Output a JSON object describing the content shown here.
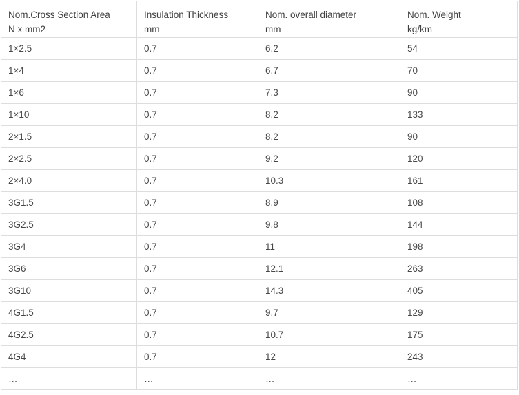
{
  "table": {
    "columns": [
      {
        "title": "Nom.Cross Section Area",
        "unit": "N x mm2"
      },
      {
        "title": "Insulation Thickness",
        "unit": "mm"
      },
      {
        "title": "Nom. overall diameter",
        "unit": "mm"
      },
      {
        "title": "Nom. Weight",
        "unit": "kg/km"
      }
    ],
    "rows": [
      [
        "1×2.5",
        "0.7",
        "6.2",
        "54"
      ],
      [
        "1×4",
        "0.7",
        "6.7",
        "70"
      ],
      [
        "1×6",
        "0.7",
        "7.3",
        "90"
      ],
      [
        "1×10",
        "0.7",
        "8.2",
        "133"
      ],
      [
        "2×1.5",
        "0.7",
        "8.2",
        "90"
      ],
      [
        "2×2.5",
        "0.7",
        "9.2",
        "120"
      ],
      [
        "2×4.0",
        "0.7",
        "10.3",
        "161"
      ],
      [
        "3G1.5",
        "0.7",
        "8.9",
        "108"
      ],
      [
        "3G2.5",
        "0.7",
        "9.8",
        "144"
      ],
      [
        "3G4",
        "0.7",
        "11",
        "198"
      ],
      [
        "3G6",
        "0.7",
        "12.1",
        "263"
      ],
      [
        "3G10",
        "0.7",
        "14.3",
        "405"
      ],
      [
        "4G1.5",
        "0.7",
        "9.7",
        "129"
      ],
      [
        "4G2.5",
        "0.7",
        "10.7",
        "175"
      ],
      [
        "4G4",
        "0.7",
        "12",
        "243"
      ],
      [
        "…",
        "…",
        "…",
        "…"
      ]
    ]
  }
}
